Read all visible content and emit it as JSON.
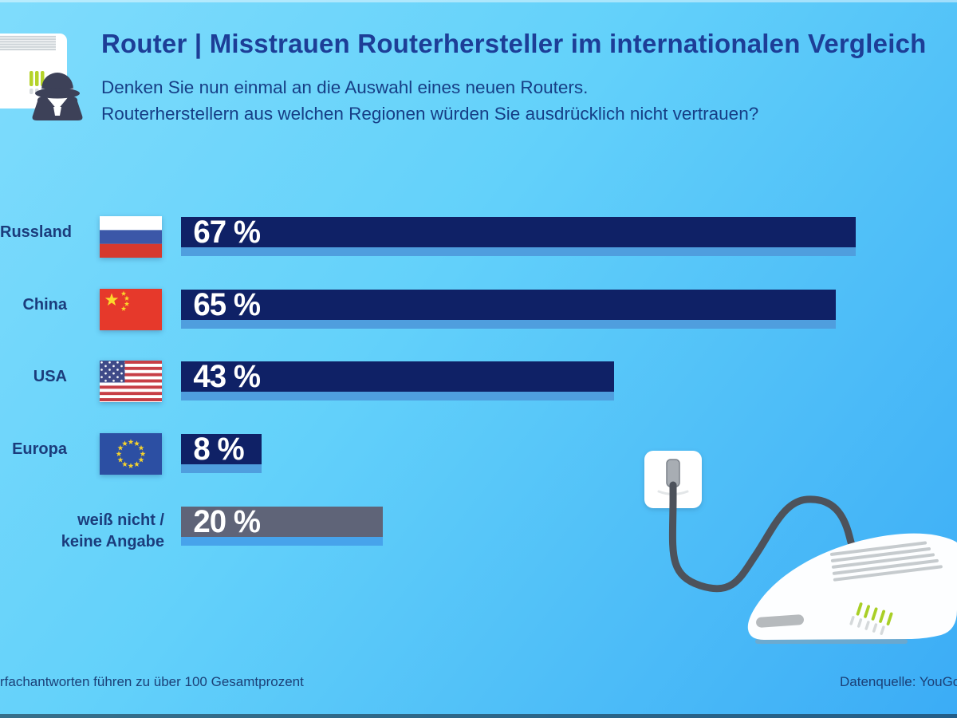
{
  "header": {
    "title": "Router | Misstrauen Routerhersteller im internationalen Vergleich",
    "subtitle_line1": "Denken Sie nun einmal an die Auswahl eines neuen Routers.",
    "subtitle_line2": "Routerherstellern aus welchen Regionen würden Sie ausdrücklich nicht vertrauen?"
  },
  "chart_data": {
    "type": "bar",
    "orientation": "horizontal",
    "unit": "%",
    "value_axis_range": [
      0,
      100
    ],
    "gridlines": false,
    "legend": false,
    "categories": [
      "Russland",
      "China",
      "USA",
      "Europa",
      "weiß nicht / keine Angabe"
    ],
    "values": [
      67,
      65,
      43,
      8,
      20
    ],
    "rows": [
      {
        "label": "Russland",
        "label_line2": "",
        "value": 67,
        "display": "67 %",
        "flag": "russia",
        "color_key": "navy"
      },
      {
        "label": "China",
        "label_line2": "",
        "value": 65,
        "display": "65 %",
        "flag": "china",
        "color_key": "navy"
      },
      {
        "label": "USA",
        "label_line2": "",
        "value": 43,
        "display": "43 %",
        "flag": "usa",
        "color_key": "navy"
      },
      {
        "label": "Europa",
        "label_line2": "",
        "value": 8,
        "display": "8 %",
        "flag": "eu",
        "color_key": "navy"
      },
      {
        "label": "weiß nicht /",
        "label_line2": "keine Angabe",
        "value": 20,
        "display": "20 %",
        "flag": "",
        "color_key": "gray"
      }
    ]
  },
  "footer": {
    "note_left": "rfachantworten führen zu über 100 Gesamtprozent",
    "source": "Datenquelle: YouGov"
  },
  "colors": {
    "background_top": "#7fdcfc",
    "background_bottom": "#3bacf6",
    "title": "#1d3e97",
    "subtitle": "#163e86",
    "label": "#1b3c7c",
    "footer": "#1b4077",
    "bar_navy": "#0f2166",
    "bar_gray": "#5f6478",
    "bar_shadow_navy": "#4f9ede",
    "bar_shadow_gray": "#47a3eb",
    "value_text": "#ffffff",
    "led_green": "#b0d22a"
  }
}
